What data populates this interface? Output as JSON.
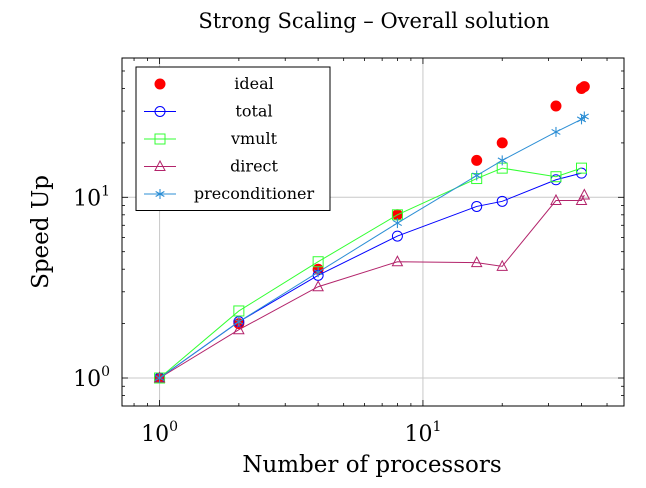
{
  "chart_data": {
    "type": "line",
    "title": "Strong Scaling – Overall solution",
    "xlabel": "Number of processors",
    "ylabel": "Speed Up",
    "xscale": "log",
    "yscale": "log",
    "xlim": [
      0.72,
      58
    ],
    "ylim": [
      0.7,
      59
    ],
    "grid": true,
    "legend_position": "top-left",
    "x_ticks": [
      {
        "value": 1,
        "base": "10",
        "exp": "0"
      },
      {
        "value": 10,
        "base": "10",
        "exp": "1"
      }
    ],
    "y_ticks": [
      {
        "value": 1,
        "base": "10",
        "exp": "0"
      },
      {
        "value": 10,
        "base": "10",
        "exp": "1"
      }
    ],
    "series": [
      {
        "name": "ideal",
        "marker": "filled-circle",
        "line": false,
        "color": "#ff0000",
        "x": [
          1,
          2,
          4,
          8,
          16,
          20,
          32,
          40,
          41
        ],
        "y": [
          1,
          2,
          4,
          8,
          16,
          20,
          32,
          40,
          41
        ]
      },
      {
        "name": "total",
        "marker": "circle",
        "line": true,
        "color": "#0000ff",
        "x": [
          1,
          2,
          4,
          8,
          16,
          20,
          32,
          40
        ],
        "y": [
          1,
          2.05,
          3.7,
          6.1,
          8.9,
          9.5,
          12.5,
          13.6
        ]
      },
      {
        "name": "vmult",
        "marker": "square",
        "line": true,
        "color": "#33ff33",
        "x": [
          1,
          2,
          4,
          8,
          16,
          20,
          32,
          40
        ],
        "y": [
          1,
          2.35,
          4.4,
          8.0,
          12.7,
          14.5,
          13.0,
          14.5
        ]
      },
      {
        "name": "direct",
        "marker": "triangle",
        "line": true,
        "color": "#b3246b",
        "x": [
          1,
          2,
          4,
          8,
          16,
          20,
          32,
          40,
          41
        ],
        "y": [
          1,
          1.85,
          3.2,
          4.4,
          4.35,
          4.15,
          9.6,
          9.6,
          10.3
        ]
      },
      {
        "name": "preconditioner",
        "marker": "asterisk",
        "line": true,
        "color": "#2d8fd5",
        "x": [
          1,
          2,
          4,
          8,
          16,
          20,
          32,
          40,
          41
        ],
        "y": [
          1,
          2.05,
          3.85,
          7.2,
          13.2,
          16.0,
          23.0,
          27.0,
          28.0
        ]
      }
    ]
  }
}
